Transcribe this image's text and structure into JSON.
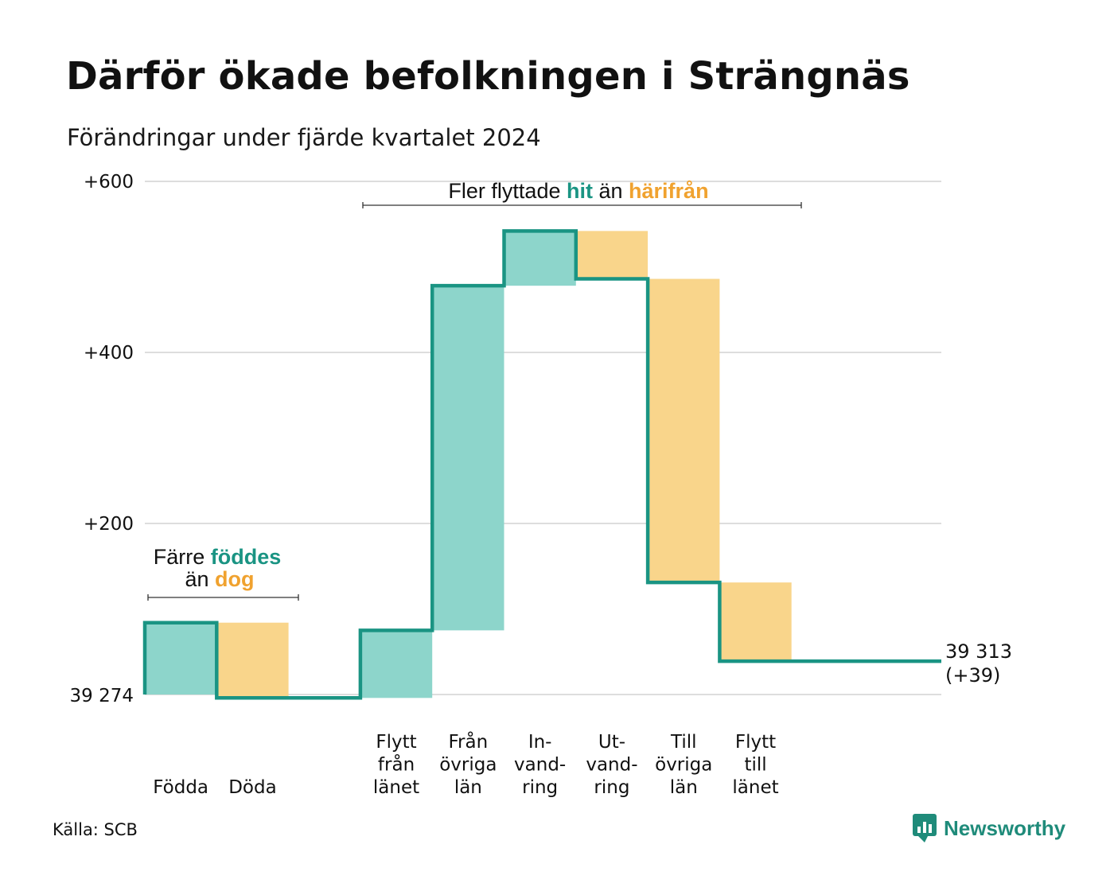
{
  "title": "Därför ökade befolkningen i Strängnäs",
  "subtitle": "Förändringar under fjärde kvartalet 2024",
  "source": "Källa: SCB",
  "logo": {
    "text": "Newsworthy",
    "icon": "newsworthy-logo-icon"
  },
  "colors": {
    "increase": "#8dd5cb",
    "decrease": "#f9d58b",
    "line": "#1a9483",
    "hit": "#1a9483",
    "harifran": "#f0a22f",
    "grid": "#dddddd"
  },
  "chart_data": {
    "type": "waterfall",
    "baseline_label": "39 274",
    "baseline_value": 39274,
    "y_ticks": [
      {
        "value": 200,
        "label": "+200"
      },
      {
        "value": 400,
        "label": "+400"
      },
      {
        "value": 600,
        "label": "+600"
      }
    ],
    "ylim": [
      0,
      600
    ],
    "grid": true,
    "steps": [
      {
        "label": [
          "Födda"
        ],
        "change": 84,
        "kind": "increase"
      },
      {
        "label": [
          "Döda"
        ],
        "change": -88,
        "kind": "decrease"
      },
      {
        "label": [],
        "change": 0,
        "kind": "gap"
      },
      {
        "label": [
          "Flytt",
          "från",
          "länet"
        ],
        "change": 79,
        "kind": "increase"
      },
      {
        "label": [
          "Från",
          "övriga",
          "län"
        ],
        "change": 403,
        "kind": "increase"
      },
      {
        "label": [
          "In-",
          "vand-",
          "ring"
        ],
        "change": 64,
        "kind": "increase"
      },
      {
        "label": [
          "Ut-",
          "vand-",
          "ring"
        ],
        "change": -56,
        "kind": "decrease"
      },
      {
        "label": [
          "Till",
          "övriga",
          "län"
        ],
        "change": -355,
        "kind": "decrease"
      },
      {
        "label": [
          "Flytt",
          "till",
          "länet"
        ],
        "change": -92,
        "kind": "decrease"
      }
    ],
    "end": {
      "value_label": "39 313",
      "change_label": "(+39)",
      "change": 39
    },
    "annotations": [
      {
        "parts": [
          {
            "text": "Färre ",
            "style": "plain"
          },
          {
            "text": "föddes",
            "style": "hit"
          }
        ],
        "parts2": [
          {
            "text": "än ",
            "style": "plain"
          },
          {
            "text": "dog",
            "style": "harifran"
          }
        ]
      },
      {
        "parts": [
          {
            "text": "Fler flyttade ",
            "style": "plain"
          },
          {
            "text": "hit",
            "style": "hit"
          },
          {
            "text": " än ",
            "style": "plain"
          },
          {
            "text": "härifrån",
            "style": "harifran"
          }
        ]
      }
    ]
  }
}
